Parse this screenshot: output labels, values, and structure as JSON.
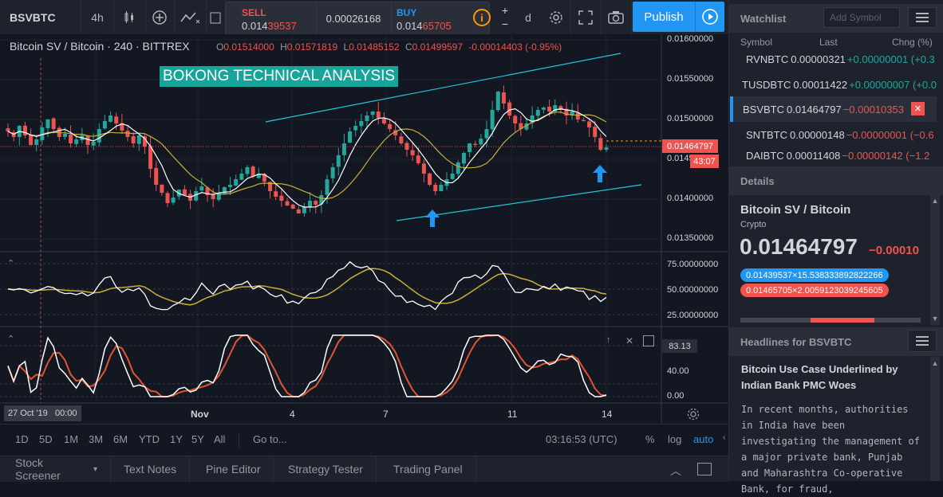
{
  "topbar": {
    "symbol": "BSVBTC",
    "interval": "4h",
    "sell_label": "SELL",
    "sell_price_main": "0.014",
    "sell_price_accent": "39537",
    "spread": "0.00026168",
    "buy_label": "BUY",
    "buy_price_main": "0.014",
    "buy_price_accent": "65705",
    "publish_label": "Publish",
    "style_fragment": "d"
  },
  "legend": {
    "title": "Bitcoin SV / Bitcoin · 240 · BITTREX",
    "o_label": "O",
    "o_value": "0.01514000",
    "h_label": "H",
    "h_value": "0.01571819",
    "l_label": "L",
    "l_value": "0.01485152",
    "c_label": "C",
    "c_value": "0.01499597",
    "change": "-0.00014403 (-0.95%)"
  },
  "watermark": "BOKONG TECHNICAL ANALYSIS",
  "price_axis": {
    "ticks": [
      "0.01600000",
      "0.01550000",
      "0.01500000",
      "0.01450000",
      "0.01400000",
      "0.01350000"
    ],
    "current_label": "0.01464797",
    "countdown": "43:07"
  },
  "rsi_axis": {
    "ticks": [
      "75.00000000",
      "50.00000000",
      "25.00000000"
    ]
  },
  "stoch_axis": {
    "ticks": [
      "40.00",
      "0.00"
    ],
    "current_label": "83.13"
  },
  "time_axis": {
    "ticks": [
      "Nov",
      "4",
      "7",
      "11",
      "14"
    ],
    "cursor_label": "27 Oct '19   00:00"
  },
  "bottombar": {
    "ranges": [
      "1D",
      "5D",
      "1M",
      "3M",
      "6M",
      "YTD",
      "1Y",
      "5Y",
      "All"
    ],
    "goto": "Go to...",
    "time": "03:16:53 (UTC)",
    "percent": "%",
    "log": "log",
    "auto": "auto"
  },
  "panel_tabs": [
    "Stock Screener",
    "Text Notes",
    "Pine Editor",
    "Strategy Tester",
    "Trading Panel"
  ],
  "watchlist": {
    "title": "Watchlist",
    "add_placeholder": "Add Symbol",
    "col_symbol": "Symbol",
    "col_last": "Last",
    "col_chng": "Chng (%)",
    "rows": [
      {
        "symbol": "RVNBTC",
        "last": "0.00000321",
        "chg": "+0.00000001 (+0.3",
        "dir": "pos"
      },
      {
        "symbol": "TUSDBTC",
        "last": "0.00011422",
        "chg": "+0.00000007 (+0.0",
        "dir": "pos"
      },
      {
        "symbol": "BSVBTC",
        "last": "0.01464797",
        "chg": "−0.00010353",
        "dir": "neg"
      },
      {
        "symbol": "SNTBTC",
        "last": "0.00000148",
        "chg": "−0.00000001 (−0.6",
        "dir": "neg"
      },
      {
        "symbol": "DAIBTC",
        "last": "0.00011408",
        "chg": "−0.00000142 (−1.2",
        "dir": "neg"
      }
    ]
  },
  "details": {
    "title": "Details",
    "name": "Bitcoin SV / Bitcoin",
    "type": "Crypto",
    "price": "0.01464797",
    "change": "−0.00010",
    "bid_pill": "0.01439537×15.538333892822266",
    "ask_pill": "0.01465705×2.0059123039245605"
  },
  "headlines": {
    "title": "Headlines for BSVBTC",
    "headline": "Bitcoin Use Case Underlined by Indian Bank PMC Woes",
    "body": "In recent months, authorities in India have been investigating the management of a major private bank, Punjab and Maharashtra Co-operative Bank, for fraud,"
  },
  "colors": {
    "up": "#26a69a",
    "down": "#ef5350",
    "accent": "#2196f3",
    "ma_fast": "#ffffff",
    "ma_slow": "#c9b037",
    "channel": "#26c6da",
    "watermark_bg": "#16a59a"
  },
  "chart_data": {
    "type": "candlestick",
    "symbol": "Bitcoin SV / Bitcoin",
    "interval": "240",
    "exchange": "BITTREX",
    "ylim": [
      0.0133,
      0.0162
    ],
    "x_ticks": [
      "Nov",
      "4",
      "7",
      "11",
      "14"
    ],
    "closes": [
      0.01485,
      0.01478,
      0.01492,
      0.0148,
      0.01468,
      0.01475,
      0.0149,
      0.015,
      0.01488,
      0.01478,
      0.01482,
      0.0147,
      0.01475,
      0.0148,
      0.01468,
      0.01472,
      0.01488,
      0.01498,
      0.01505,
      0.01495,
      0.01486,
      0.01478,
      0.0147,
      0.0148,
      0.01466,
      0.01438,
      0.01418,
      0.01408,
      0.01395,
      0.01402,
      0.01412,
      0.01405,
      0.01398,
      0.0141,
      0.01416,
      0.01405,
      0.014,
      0.01408,
      0.01415,
      0.01418,
      0.01425,
      0.01432,
      0.0144,
      0.01428,
      0.01432,
      0.01422,
      0.0141,
      0.01403,
      0.01398,
      0.01392,
      0.01388,
      0.01382,
      0.0139,
      0.01398,
      0.01393,
      0.01405,
      0.01425,
      0.0144,
      0.01455,
      0.0147,
      0.01485,
      0.01492,
      0.01498,
      0.01505,
      0.0151,
      0.01502,
      0.01495,
      0.01488,
      0.0148,
      0.0147,
      0.01462,
      0.01455,
      0.01445,
      0.01432,
      0.01418,
      0.0141,
      0.01418,
      0.01425,
      0.01432,
      0.01446,
      0.01458,
      0.0147,
      0.01468,
      0.01476,
      0.01488,
      0.01512,
      0.01535,
      0.0152,
      0.01505,
      0.01495,
      0.01488,
      0.01495,
      0.01505,
      0.01512,
      0.01515,
      0.0151,
      0.01518,
      0.01512,
      0.01505,
      0.0151,
      0.015,
      0.01498,
      0.0149,
      0.01478,
      0.01462,
      0.01465
    ],
    "ma_fast": "white line (fast moving average)",
    "ma_slow": "yellow line (slow moving average)",
    "current_price": 0.01464797,
    "rsi": {
      "ylim": [
        0,
        100
      ],
      "levels": [
        25,
        50,
        75
      ]
    },
    "stochastic": {
      "ylim": [
        0,
        100
      ],
      "current": 83.13,
      "levels": [
        0,
        40
      ]
    }
  }
}
